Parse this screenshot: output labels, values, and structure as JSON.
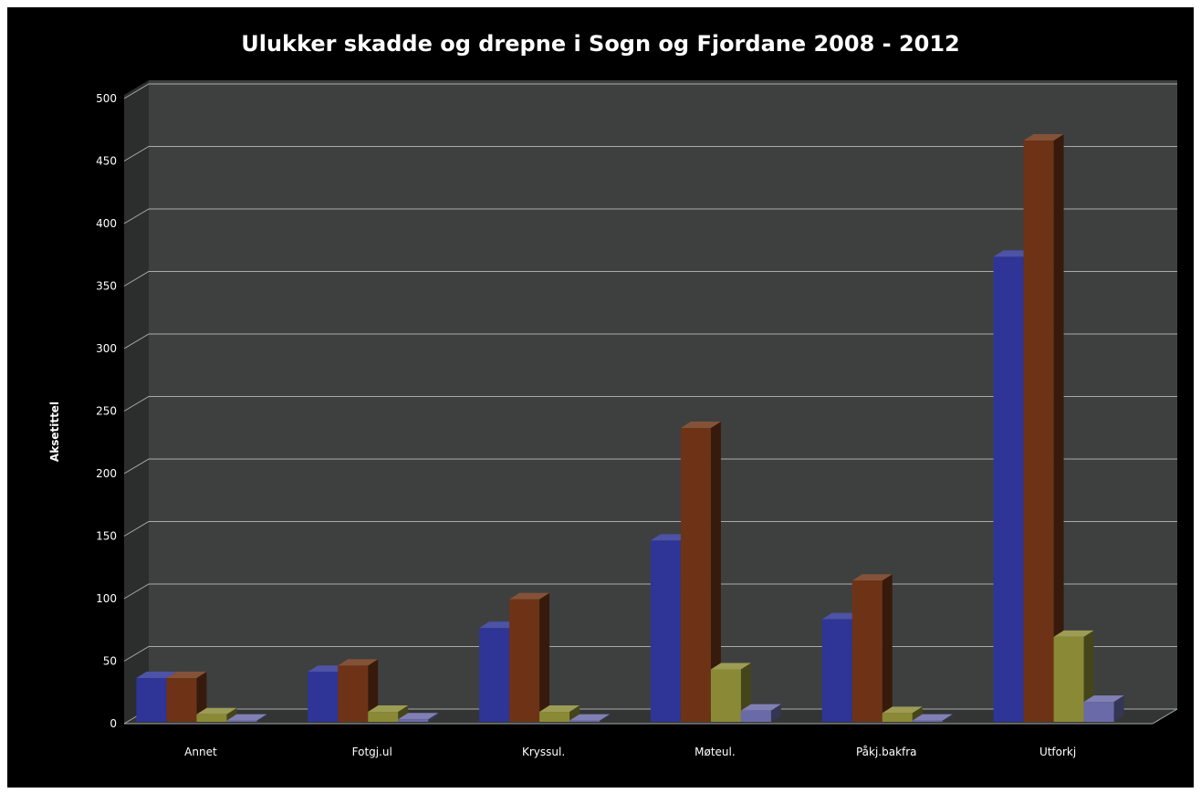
{
  "chart_data": {
    "type": "bar",
    "title": "Ulukker skadde og drepne i Sogn og Fjordane 2008 - 2012",
    "xlabel": "",
    "ylabel": "Aksetittel",
    "ylim": [
      0,
      500
    ],
    "yticks": [
      0,
      50,
      100,
      150,
      200,
      250,
      300,
      350,
      400,
      450,
      500
    ],
    "ytick_labels": [
      "0",
      "50",
      "100",
      "150",
      "200",
      "250",
      "300",
      "350",
      "400",
      "450",
      "500"
    ],
    "grid": true,
    "legend": "none",
    "categories": [
      "Annet",
      "Fotgj.ul",
      "Kryssul.",
      "Møteul.",
      "Påkj.bakfra",
      "Utforkj"
    ],
    "series": [
      {
        "color": "#2e3596",
        "values": [
          35,
          40,
          75,
          145,
          82,
          372
        ]
      },
      {
        "color": "#6e3316",
        "values": [
          35,
          45,
          98,
          235,
          113,
          465
        ]
      },
      {
        "color": "#8a8a36",
        "values": [
          6,
          8,
          8,
          42,
          7,
          68
        ]
      },
      {
        "color": "#6a6aa8",
        "values": [
          1,
          2,
          1,
          9,
          1,
          16
        ]
      }
    ],
    "colors": {
      "background": "#000000",
      "plot_back_wall": "#3e4040",
      "plot_side_wall": "#2c2d2d",
      "floor": "#333535",
      "grid": "#aaaaaa",
      "text": "#ffffff"
    }
  }
}
